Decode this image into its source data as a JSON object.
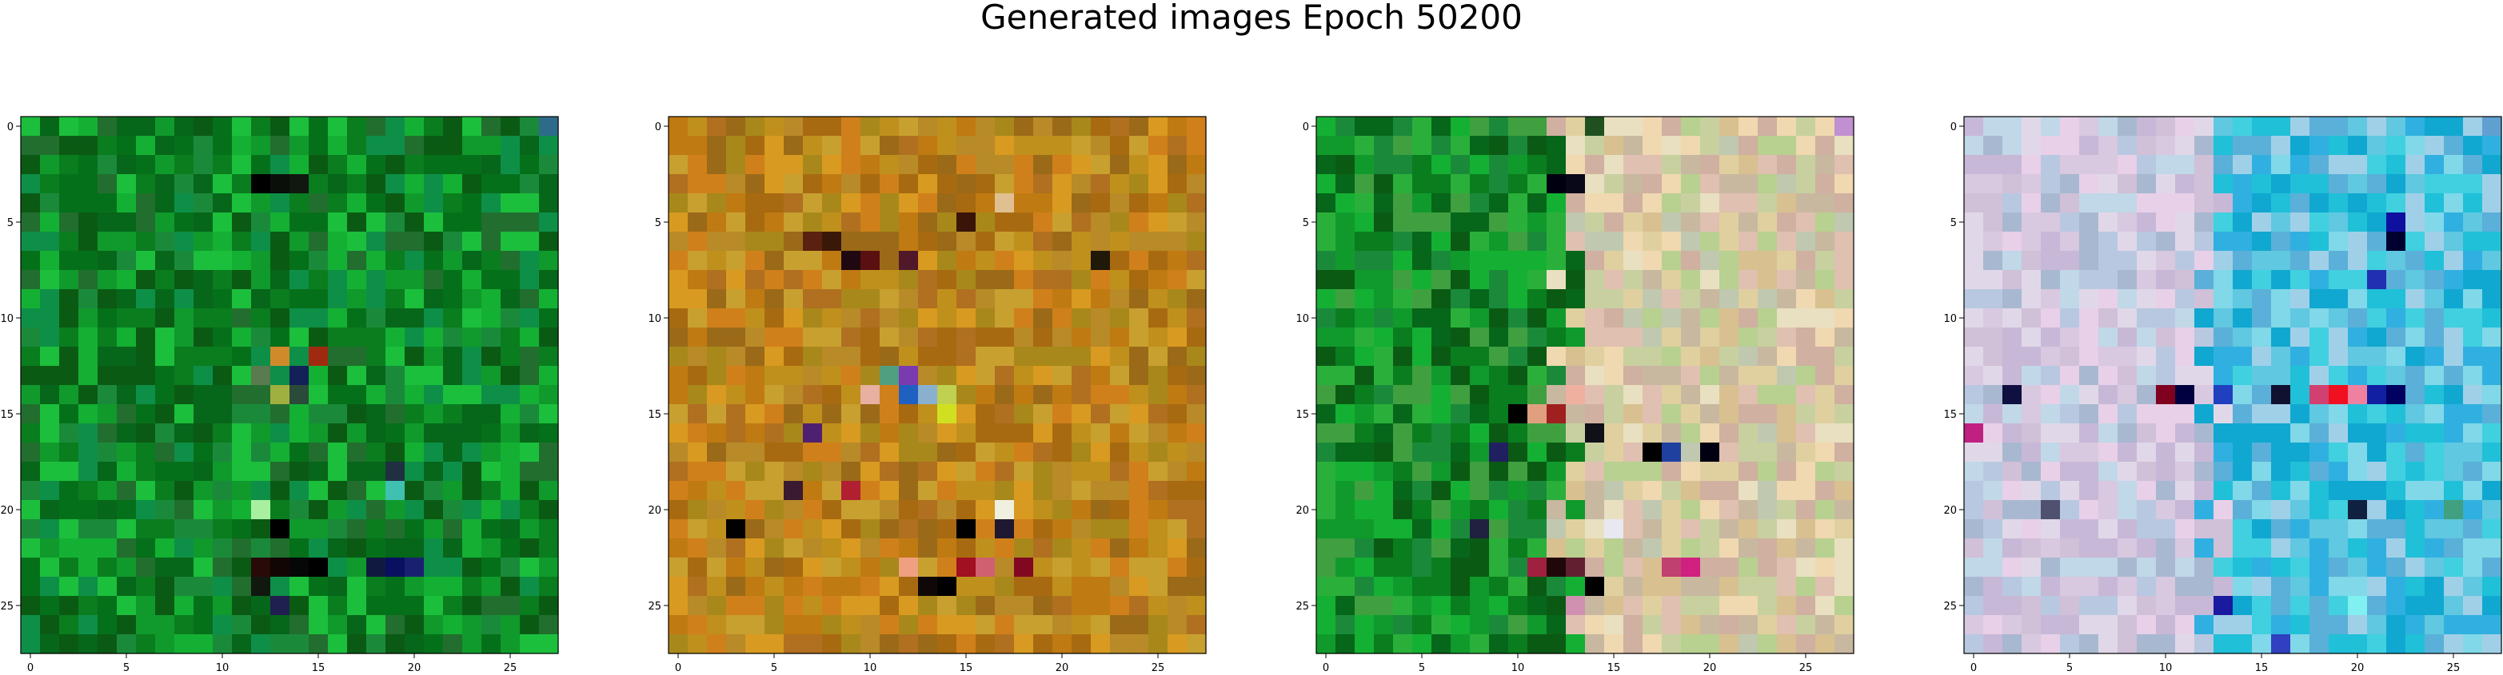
{
  "title": "Generated images Epoch 50200",
  "chart_data": {
    "type": "heatmap",
    "title": "Generated images Epoch 50200",
    "grid": false,
    "note_values": "Each panel is a 28x28 RGB image; pixel colours are approximated.",
    "panels": [
      {
        "name": "",
        "xlim": [
          -0.5,
          27.5
        ],
        "ylim": [
          27.5,
          -0.5
        ],
        "xticks": [
          0,
          5,
          10,
          15,
          20,
          25
        ],
        "yticks": [
          0,
          5,
          10,
          15,
          20,
          25
        ],
        "palette": [
          "#0a7d1e",
          "#109a2c",
          "#06661a",
          "#14b033",
          "#0b5a14",
          "#1a8a3a",
          "#05701a",
          "#1bbf3c",
          "#226e2e",
          "#0e8f48"
        ],
        "accents": [
          {
            "x": 12,
            "y": 3,
            "color": "#000000"
          },
          {
            "x": 13,
            "y": 3,
            "color": "#0a0f0a"
          },
          {
            "x": 14,
            "y": 3,
            "color": "#101810"
          },
          {
            "x": 27,
            "y": 0,
            "color": "#2e6b8a"
          },
          {
            "x": 13,
            "y": 12,
            "color": "#d08a2a"
          },
          {
            "x": 14,
            "y": 13,
            "color": "#142058"
          },
          {
            "x": 15,
            "y": 12,
            "color": "#a02a10"
          },
          {
            "x": 12,
            "y": 13,
            "color": "#5a7a50"
          },
          {
            "x": 13,
            "y": 14,
            "color": "#a0b040"
          },
          {
            "x": 14,
            "y": 14,
            "color": "#2a4a3a"
          },
          {
            "x": 12,
            "y": 20,
            "color": "#a8f0a0"
          },
          {
            "x": 13,
            "y": 21,
            "color": "#000000"
          },
          {
            "x": 19,
            "y": 19,
            "color": "#40c0b0"
          },
          {
            "x": 19,
            "y": 18,
            "color": "#203040"
          },
          {
            "x": 12,
            "y": 23,
            "color": "#2a0a08"
          },
          {
            "x": 13,
            "y": 23,
            "color": "#120604"
          },
          {
            "x": 14,
            "y": 23,
            "color": "#060808"
          },
          {
            "x": 15,
            "y": 23,
            "color": "#000000"
          },
          {
            "x": 18,
            "y": 23,
            "color": "#101a40"
          },
          {
            "x": 19,
            "y": 23,
            "color": "#0a1060"
          },
          {
            "x": 20,
            "y": 23,
            "color": "#1a2070"
          },
          {
            "x": 13,
            "y": 25,
            "color": "#202050"
          },
          {
            "x": 12,
            "y": 24,
            "color": "#101810"
          }
        ]
      },
      {
        "name": "",
        "xlim": [
          -0.5,
          27.5
        ],
        "ylim": [
          27.5,
          -0.5
        ],
        "xticks": [
          0,
          5,
          10,
          15,
          20,
          25
        ],
        "yticks": [
          0,
          5,
          10,
          15,
          20,
          25
        ],
        "palette": [
          "#c07a12",
          "#d89a20",
          "#a86a10",
          "#b88a28",
          "#c8a030",
          "#9a6a18",
          "#d0801a",
          "#b07020",
          "#c0901c",
          "#a8881a"
        ],
        "accents": [
          {
            "x": 7,
            "y": 6,
            "color": "#5a2010"
          },
          {
            "x": 8,
            "y": 6,
            "color": "#3a1808"
          },
          {
            "x": 9,
            "y": 7,
            "color": "#200810"
          },
          {
            "x": 10,
            "y": 7,
            "color": "#5a1010"
          },
          {
            "x": 12,
            "y": 7,
            "color": "#501828"
          },
          {
            "x": 15,
            "y": 5,
            "color": "#3a1408"
          },
          {
            "x": 17,
            "y": 4,
            "color": "#e0c090"
          },
          {
            "x": 22,
            "y": 7,
            "color": "#201808"
          },
          {
            "x": 12,
            "y": 14,
            "color": "#2060c0"
          },
          {
            "x": 13,
            "y": 14,
            "color": "#8ab0d0"
          },
          {
            "x": 14,
            "y": 14,
            "color": "#c0d050"
          },
          {
            "x": 11,
            "y": 13,
            "color": "#50a080"
          },
          {
            "x": 12,
            "y": 13,
            "color": "#7a3ab0"
          },
          {
            "x": 14,
            "y": 15,
            "color": "#d0e020"
          },
          {
            "x": 10,
            "y": 14,
            "color": "#e8b0a0"
          },
          {
            "x": 3,
            "y": 21,
            "color": "#000000"
          },
          {
            "x": 15,
            "y": 21,
            "color": "#000000"
          },
          {
            "x": 17,
            "y": 20,
            "color": "#f0f0e0"
          },
          {
            "x": 17,
            "y": 21,
            "color": "#201830"
          },
          {
            "x": 15,
            "y": 23,
            "color": "#a01020"
          },
          {
            "x": 18,
            "y": 23,
            "color": "#800820"
          },
          {
            "x": 16,
            "y": 23,
            "color": "#d06070"
          },
          {
            "x": 12,
            "y": 23,
            "color": "#f0a080"
          },
          {
            "x": 13,
            "y": 24,
            "color": "#100808"
          },
          {
            "x": 14,
            "y": 24,
            "color": "#000000"
          },
          {
            "x": 7,
            "y": 16,
            "color": "#502070"
          },
          {
            "x": 6,
            "y": 19,
            "color": "#3a1a30"
          },
          {
            "x": 9,
            "y": 19,
            "color": "#b02030"
          }
        ]
      },
      {
        "name": "",
        "xlim": [
          -0.5,
          27.5
        ],
        "ylim": [
          27.5,
          -0.5
        ],
        "xticks": [
          0,
          5,
          10,
          15,
          20,
          25
        ],
        "yticks": [
          0,
          5,
          10,
          15,
          20,
          25
        ],
        "palette_left": [
          "#0a7d1e",
          "#109a2c",
          "#06661a",
          "#14b033",
          "#0b5a14",
          "#1a8a3a",
          "#40a040",
          "#2ab03a"
        ],
        "palette_right": [
          "#e0d0a0",
          "#d8c090",
          "#c8d0a0",
          "#f0d8b0",
          "#c8b8a0",
          "#e8e0c0",
          "#b8d090",
          "#d0b0a0",
          "#e0c0b0",
          "#c0c8b0"
        ],
        "accents": [
          {
            "x": 12,
            "y": 3,
            "color": "#000010"
          },
          {
            "x": 13,
            "y": 3,
            "color": "#080818"
          },
          {
            "x": 14,
            "y": 0,
            "color": "#205020"
          },
          {
            "x": 27,
            "y": 0,
            "color": "#c090d0"
          },
          {
            "x": 10,
            "y": 15,
            "color": "#000000"
          },
          {
            "x": 11,
            "y": 15,
            "color": "#e0a080"
          },
          {
            "x": 12,
            "y": 15,
            "color": "#a02020"
          },
          {
            "x": 13,
            "y": 14,
            "color": "#f0b0a0"
          },
          {
            "x": 14,
            "y": 16,
            "color": "#101018"
          },
          {
            "x": 9,
            "y": 17,
            "color": "#202060"
          },
          {
            "x": 17,
            "y": 17,
            "color": "#000000"
          },
          {
            "x": 18,
            "y": 17,
            "color": "#2040a0"
          },
          {
            "x": 20,
            "y": 17,
            "color": "#000010"
          },
          {
            "x": 11,
            "y": 23,
            "color": "#a02040"
          },
          {
            "x": 12,
            "y": 23,
            "color": "#200808"
          },
          {
            "x": 13,
            "y": 23,
            "color": "#602030"
          },
          {
            "x": 14,
            "y": 24,
            "color": "#000000"
          },
          {
            "x": 19,
            "y": 23,
            "color": "#d02080"
          },
          {
            "x": 18,
            "y": 23,
            "color": "#c04070"
          },
          {
            "x": 13,
            "y": 25,
            "color": "#d090b0"
          },
          {
            "x": 8,
            "y": 21,
            "color": "#202040"
          },
          {
            "x": 15,
            "y": 21,
            "color": "#e8e8f0"
          }
        ]
      },
      {
        "name": "",
        "xlim": [
          -0.5,
          27.5
        ],
        "ylim": [
          27.5,
          -0.5
        ],
        "xticks": [
          0,
          5,
          10,
          15,
          20,
          25
        ],
        "yticks": [
          0,
          5,
          10,
          15,
          20,
          25
        ],
        "palette_left": [
          "#c8b8d8",
          "#d8c8e0",
          "#b8c8e0",
          "#e0d8e8",
          "#a8b8d0",
          "#d0c0d8",
          "#c0d8e8",
          "#e8d0e8"
        ],
        "palette_right": [
          "#20c0d8",
          "#40d0e0",
          "#10a8d0",
          "#60c8e0",
          "#80d8e8",
          "#30b0e0",
          "#5ab0d8",
          "#a0d0e8"
        ],
        "accents": [
          {
            "x": 10,
            "y": 14,
            "color": "#800020"
          },
          {
            "x": 11,
            "y": 14,
            "color": "#000040"
          },
          {
            "x": 13,
            "y": 14,
            "color": "#2040c0"
          },
          {
            "x": 16,
            "y": 14,
            "color": "#101030"
          },
          {
            "x": 18,
            "y": 14,
            "color": "#d04070"
          },
          {
            "x": 19,
            "y": 14,
            "color": "#f01020"
          },
          {
            "x": 20,
            "y": 14,
            "color": "#f080a0"
          },
          {
            "x": 22,
            "y": 14,
            "color": "#000060"
          },
          {
            "x": 21,
            "y": 14,
            "color": "#1020a0"
          },
          {
            "x": 2,
            "y": 14,
            "color": "#101040"
          },
          {
            "x": 0,
            "y": 16,
            "color": "#c02080"
          },
          {
            "x": 22,
            "y": 6,
            "color": "#000030"
          },
          {
            "x": 22,
            "y": 5,
            "color": "#1010a0"
          },
          {
            "x": 21,
            "y": 8,
            "color": "#2030b0"
          },
          {
            "x": 13,
            "y": 25,
            "color": "#1a1aa0"
          },
          {
            "x": 20,
            "y": 25,
            "color": "#80f0f0"
          },
          {
            "x": 20,
            "y": 20,
            "color": "#102040"
          },
          {
            "x": 25,
            "y": 20,
            "color": "#40a080"
          },
          {
            "x": 4,
            "y": 20,
            "color": "#505070"
          },
          {
            "x": 16,
            "y": 27,
            "color": "#3040c0"
          },
          {
            "x": 27,
            "y": 0,
            "color": "#60a0d0"
          }
        ]
      }
    ]
  }
}
